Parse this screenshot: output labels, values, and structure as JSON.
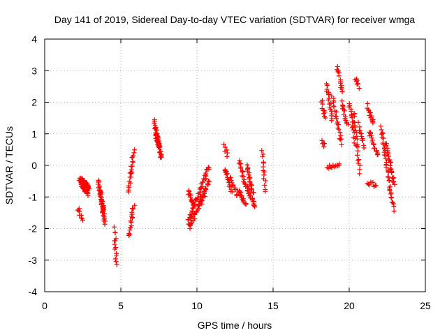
{
  "chart_data": {
    "type": "scatter",
    "title": "Day 141 of 2019, Sidereal Day-to-day VTEC variation (SDTVAR) for receiver wmga",
    "xlabel": "GPS time / hours",
    "ylabel": "SDTVAR / TECUs",
    "xlim": [
      0,
      25
    ],
    "ylim": [
      -4,
      4
    ],
    "xticks": [
      0,
      5,
      10,
      15,
      20,
      25
    ],
    "yticks": [
      -4,
      -3,
      -2,
      -1,
      0,
      1,
      2,
      3,
      4
    ],
    "grid": true,
    "marker": "+",
    "color": "#ff0000",
    "series": [
      {
        "name": "SDTVAR",
        "tracks": [
          {
            "x0": 2.2,
            "x1": 2.45,
            "y0": -1.35,
            "y1": -1.7,
            "n": 10
          },
          {
            "x0": 2.3,
            "x1": 2.9,
            "y0": -0.4,
            "y1": -0.7,
            "n": 40
          },
          {
            "x0": 2.35,
            "x1": 2.85,
            "y0": -0.55,
            "y1": -0.9,
            "n": 30
          },
          {
            "x0": 3.5,
            "x1": 3.95,
            "y0": -0.5,
            "y1": -1.8,
            "n": 35
          },
          {
            "x0": 3.6,
            "x1": 3.9,
            "y0": -0.8,
            "y1": -1.5,
            "n": 20
          },
          {
            "x0": 4.6,
            "x1": 4.7,
            "y0": -2.0,
            "y1": -3.15,
            "n": 14
          },
          {
            "x0": 5.5,
            "x1": 5.85,
            "y0": -0.8,
            "y1": 0.45,
            "n": 22
          },
          {
            "x0": 5.55,
            "x1": 5.85,
            "y0": -2.25,
            "y1": -1.25,
            "n": 18
          },
          {
            "x0": 7.2,
            "x1": 7.65,
            "y0": 1.4,
            "y1": 0.2,
            "n": 35
          },
          {
            "x0": 7.25,
            "x1": 7.55,
            "y0": 1.1,
            "y1": 0.5,
            "n": 20
          },
          {
            "x0": 9.4,
            "x1": 10.8,
            "y0": -1.8,
            "y1": -0.05,
            "n": 45
          },
          {
            "x0": 9.5,
            "x1": 10.5,
            "y0": -2.0,
            "y1": -0.8,
            "n": 35
          },
          {
            "x0": 9.4,
            "x1": 9.8,
            "y0": -0.8,
            "y1": -1.3,
            "n": 15
          },
          {
            "x0": 10.2,
            "x1": 10.8,
            "y0": -1.3,
            "y1": -0.5,
            "n": 20
          },
          {
            "x0": 11.8,
            "x1": 12.0,
            "y0": 0.6,
            "y1": 0.3,
            "n": 6
          },
          {
            "x0": 11.8,
            "x1": 12.3,
            "y0": -0.1,
            "y1": -0.8,
            "n": 18
          },
          {
            "x0": 12.2,
            "x1": 12.6,
            "y0": -0.4,
            "y1": -0.9,
            "n": 12
          },
          {
            "x0": 12.7,
            "x1": 13.2,
            "y0": -0.8,
            "y1": -1.2,
            "n": 18
          },
          {
            "x0": 12.8,
            "x1": 13.1,
            "y0": 0.15,
            "y1": -0.55,
            "n": 15
          },
          {
            "x0": 13.2,
            "x1": 13.8,
            "y0": -0.6,
            "y1": -1.3,
            "n": 28
          },
          {
            "x0": 13.3,
            "x1": 13.7,
            "y0": -0.05,
            "y1": -0.9,
            "n": 22
          },
          {
            "x0": 14.3,
            "x1": 14.5,
            "y0": 0.4,
            "y1": -0.8,
            "n": 14
          },
          {
            "x0": 18.2,
            "x1": 18.4,
            "y0": 2.05,
            "y1": 1.5,
            "n": 10
          },
          {
            "x0": 18.2,
            "x1": 18.35,
            "y0": 0.8,
            "y1": 0.6,
            "n": 5
          },
          {
            "x0": 18.5,
            "x1": 19.4,
            "y0": -0.05,
            "y1": 0.05,
            "n": 14
          },
          {
            "x0": 18.5,
            "x1": 18.9,
            "y0": 2.6,
            "y1": 1.4,
            "n": 18
          },
          {
            "x0": 18.9,
            "x1": 19.5,
            "y0": 2.2,
            "y1": 0.7,
            "n": 22
          },
          {
            "x0": 19.2,
            "x1": 19.6,
            "y0": 3.1,
            "y1": 2.3,
            "n": 15
          },
          {
            "x0": 19.5,
            "x1": 19.9,
            "y0": 2.0,
            "y1": 1.3,
            "n": 15
          },
          {
            "x0": 20.0,
            "x1": 20.4,
            "y0": 2.0,
            "y1": 0.7,
            "n": 18
          },
          {
            "x0": 20.4,
            "x1": 20.6,
            "y0": 2.75,
            "y1": 2.5,
            "n": 8
          },
          {
            "x0": 20.3,
            "x1": 20.7,
            "y0": 1.7,
            "y1": -0.2,
            "n": 22
          },
          {
            "x0": 20.6,
            "x1": 21.0,
            "y0": 1.3,
            "y1": 0.6,
            "n": 12
          },
          {
            "x0": 21.2,
            "x1": 21.6,
            "y0": 1.9,
            "y1": 1.3,
            "n": 15
          },
          {
            "x0": 21.3,
            "x1": 21.9,
            "y0": 1.1,
            "y1": 0.3,
            "n": 18
          },
          {
            "x0": 21.2,
            "x1": 21.8,
            "y0": -0.55,
            "y1": -0.65,
            "n": 10
          },
          {
            "x0": 22.1,
            "x1": 22.9,
            "y0": 1.2,
            "y1": -1.4,
            "n": 40
          },
          {
            "x0": 22.4,
            "x1": 22.95,
            "y0": 0.7,
            "y1": -0.6,
            "n": 30
          }
        ]
      }
    ]
  }
}
